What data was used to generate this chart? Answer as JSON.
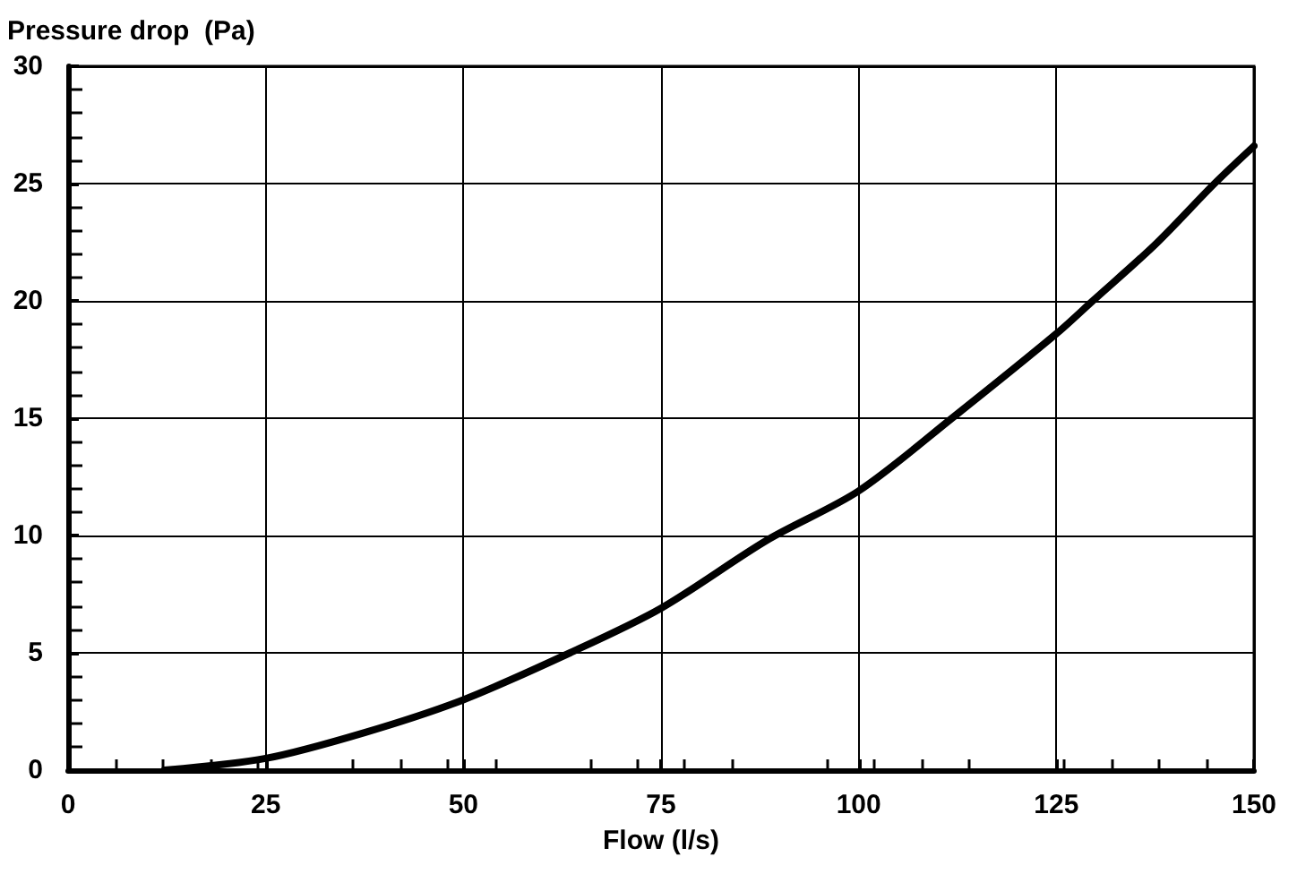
{
  "chart_data": {
    "type": "line",
    "xlabel": "Flow (l/s)",
    "ylabel": "Pressure drop  (Pa)",
    "x": [
      12.2,
      25,
      37.5,
      50,
      63.5,
      75,
      88.4,
      100,
      111.8,
      125,
      129.6,
      137.5,
      145,
      150
    ],
    "series": [
      {
        "color": "#000000",
        "values": [
          0,
          0.5,
          1.6,
          3.0,
          5.0,
          6.9,
          9.8,
          11.9,
          15.0,
          18.6,
          20.0,
          22.4,
          25.0,
          26.6
        ]
      }
    ],
    "xlim": [
      0,
      150
    ],
    "xticks": [
      0,
      25,
      50,
      75,
      100,
      125,
      150
    ],
    "ylim": [
      0,
      30
    ],
    "yticks": [
      0,
      5,
      10,
      15,
      20,
      25,
      30
    ],
    "grid": true,
    "marker": "none",
    "line_style": "solid"
  }
}
